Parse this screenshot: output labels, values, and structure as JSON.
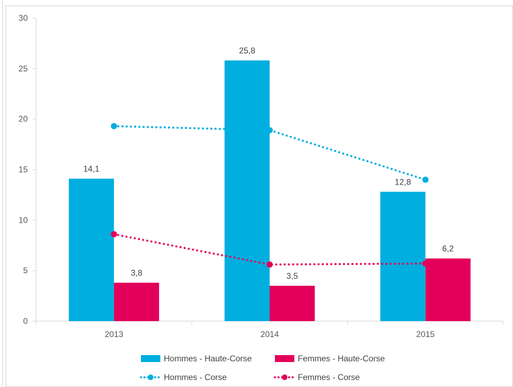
{
  "chart_data": {
    "type": "bar",
    "categories": [
      "2013",
      "2014",
      "2015"
    ],
    "ylim": [
      0,
      30
    ],
    "yticks": [
      0,
      5,
      10,
      15,
      20,
      25,
      30
    ],
    "grid": false,
    "legend_position": "bottom",
    "bar_series": [
      {
        "name": "Hommes - Haute-Corse",
        "color": "#00AEDF",
        "values": [
          14.1,
          25.8,
          12.8
        ],
        "labels": [
          "14,1",
          "25,8",
          "12,8"
        ]
      },
      {
        "name": "Femmes - Haute-Corse",
        "color": "#E3005A",
        "values": [
          3.8,
          3.5,
          6.2
        ],
        "labels": [
          "3,8",
          "3,5",
          "6,2"
        ]
      }
    ],
    "line_series": [
      {
        "name": "Hommes - Corse",
        "color": "#00AEDF",
        "style": "dotted",
        "values": [
          19.3,
          18.9,
          14.0
        ]
      },
      {
        "name": "Femmes - Corse",
        "color": "#E3005A",
        "style": "dotted",
        "values": [
          8.6,
          5.6,
          5.7
        ]
      }
    ]
  }
}
